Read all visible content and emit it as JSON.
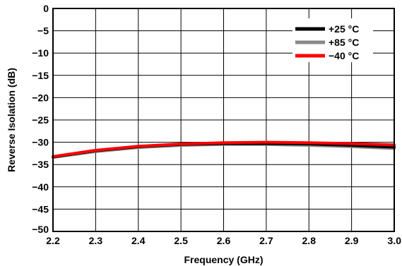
{
  "chart_data": {
    "type": "line",
    "title": "",
    "xlabel": "Frequency (GHz)",
    "ylabel": "Reverse Isolation (dB)",
    "xlim": [
      2.2,
      3.0
    ],
    "ylim": [
      -50,
      0
    ],
    "x_ticks": [
      2.2,
      2.3,
      2.4,
      2.5,
      2.6,
      2.7,
      2.8,
      2.9,
      3.0
    ],
    "x_tick_labels": [
      "2.2",
      "2.3",
      "2.4",
      "2.5",
      "2.6",
      "2.7",
      "2.8",
      "2.9",
      "3.0"
    ],
    "y_ticks": [
      0,
      -5,
      -10,
      -15,
      -20,
      -25,
      -30,
      -35,
      -40,
      -45,
      -50
    ],
    "y_tick_labels": [
      "0",
      "−5",
      "−10",
      "−15",
      "−20",
      "−25",
      "−30",
      "−35",
      "−40",
      "−45",
      "−50"
    ],
    "grid": true,
    "legend_position": "top-right",
    "x": [
      2.2,
      2.3,
      2.4,
      2.5,
      2.6,
      2.7,
      2.8,
      2.9,
      3.0
    ],
    "series": [
      {
        "name": "+25 °C",
        "color": "#000000",
        "values": [
          -33.3,
          -31.9,
          -31.0,
          -30.5,
          -30.3,
          -30.3,
          -30.4,
          -30.7,
          -31.1
        ]
      },
      {
        "name": "+85 °C",
        "color": "#888888",
        "values": [
          -33.4,
          -32.1,
          -31.2,
          -30.7,
          -30.5,
          -30.5,
          -30.7,
          -31.0,
          -31.4
        ]
      },
      {
        "name": "−40 °C",
        "color": "#ff0000",
        "values": [
          -33.2,
          -31.8,
          -30.9,
          -30.4,
          -30.1,
          -30.0,
          -30.1,
          -30.3,
          -30.6
        ]
      }
    ]
  }
}
